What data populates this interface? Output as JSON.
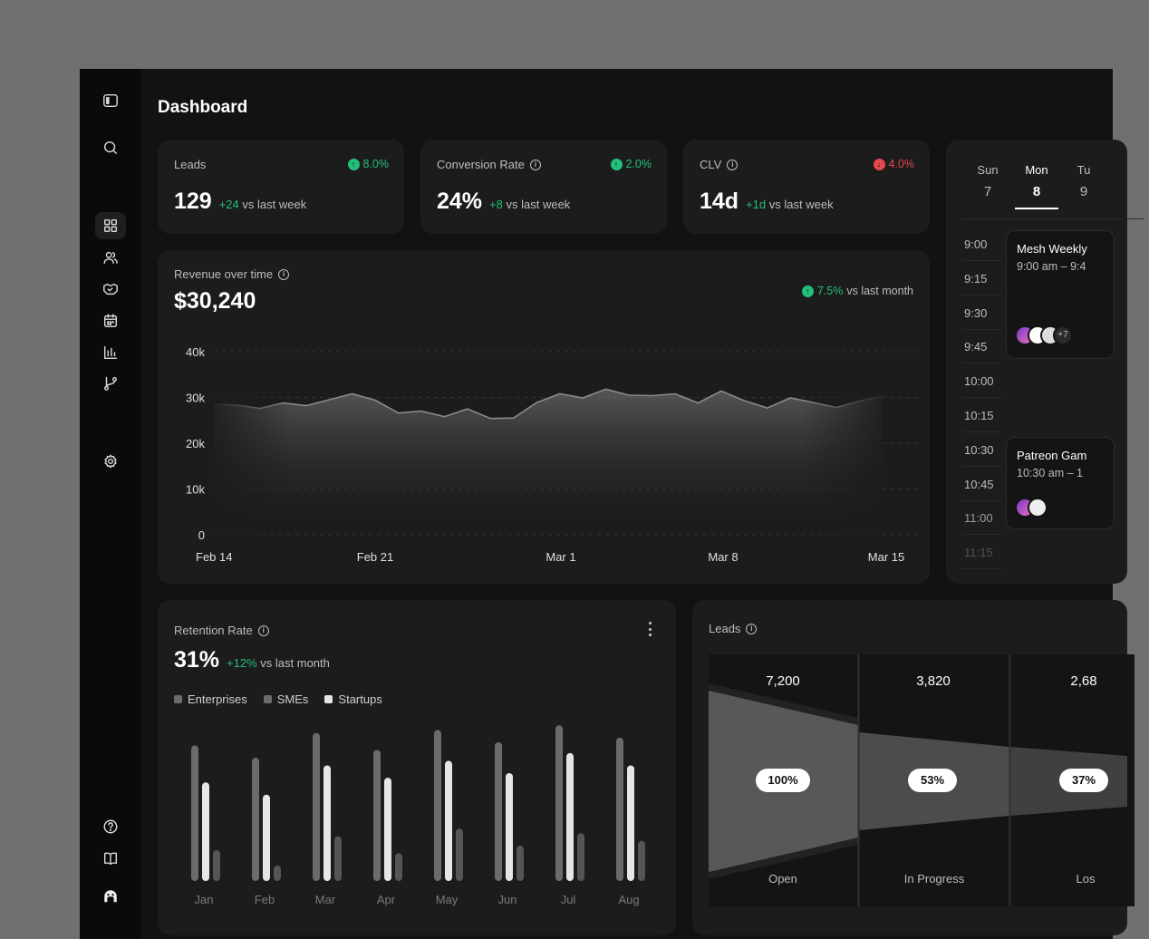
{
  "title": "Dashboard",
  "sidebar": {
    "icons": [
      "sidebar-toggle-icon",
      "search-icon",
      "grid-icon",
      "users-icon",
      "handshake-icon",
      "calendar-icon",
      "bar-chart-icon",
      "git-branch-icon",
      "settings-icon",
      "help-icon",
      "book-icon",
      "logo-icon"
    ],
    "active": "grid-icon"
  },
  "kpis": [
    {
      "label": "Leads",
      "delta": "8.0%",
      "value": "129",
      "change": "+24",
      "suffix": "vs last week",
      "trend": "up"
    },
    {
      "label": "Conversion Rate",
      "delta": "2.0%",
      "value": "24%",
      "change": "+8",
      "suffix": "vs last week",
      "trend": "up"
    },
    {
      "label": "CLV",
      "delta": "4.0%",
      "value": "14d",
      "change": "+1d",
      "suffix": "vs last week",
      "trend": "down"
    }
  ],
  "revenue": {
    "label": "Revenue over time",
    "value": "$30,240",
    "delta": "7.5%",
    "delta_suffix": "vs last month"
  },
  "calendar": {
    "days": [
      {
        "name": "Sun",
        "date": "7"
      },
      {
        "name": "Mon",
        "date": "8"
      },
      {
        "name": "Tu",
        "date": "9"
      }
    ],
    "times": [
      "9:00",
      "9:15",
      "9:30",
      "9:45",
      "10:00",
      "10:15",
      "10:30",
      "10:45",
      "11:00",
      "11:15"
    ],
    "events": [
      {
        "title": "Mesh Weekly",
        "time": "9:00 am – 9:4",
        "extra": "+7"
      },
      {
        "title": "Patreon Gam",
        "time": "10:30 am – 1"
      }
    ]
  },
  "retention": {
    "label": "Retention Rate",
    "value": "31%",
    "change": "+12%",
    "suffix": "vs last month"
  },
  "funnel": {
    "label": "Leads",
    "stages": [
      {
        "count": "7,200",
        "pct": "100%",
        "name": "Open"
      },
      {
        "count": "3,820",
        "pct": "53%",
        "name": "In Progress"
      },
      {
        "count": "2,68",
        "pct": "37%",
        "name": "Los"
      }
    ]
  },
  "chart_data": [
    {
      "type": "area",
      "title": "Revenue over time",
      "xlabel": "",
      "ylabel": "",
      "ylim": [
        0,
        40000
      ],
      "yticks": [
        "40k",
        "30k",
        "20k",
        "10k",
        "0"
      ],
      "xticks": [
        "Feb 14",
        "Feb 21",
        "Mar 1",
        "Mar 8",
        "Mar 15"
      ],
      "x": [
        "Feb 14",
        "Feb 15",
        "Feb 16",
        "Feb 17",
        "Feb 18",
        "Feb 19",
        "Feb 20",
        "Feb 21",
        "Feb 22",
        "Feb 23",
        "Feb 24",
        "Feb 25",
        "Feb 26",
        "Feb 27",
        "Feb 28",
        "Mar 1",
        "Mar 2",
        "Mar 3",
        "Mar 4",
        "Mar 5",
        "Mar 6",
        "Mar 7",
        "Mar 8",
        "Mar 9",
        "Mar 10",
        "Mar 11",
        "Mar 12",
        "Mar 13",
        "Mar 14",
        "Mar 15"
      ],
      "values": [
        28500,
        28300,
        27600,
        28800,
        28200,
        29500,
        30800,
        29400,
        26600,
        27000,
        25800,
        27500,
        25400,
        25500,
        28900,
        30800,
        29900,
        31800,
        30500,
        30400,
        30800,
        28800,
        31400,
        29300,
        27700,
        29900,
        28900,
        27800,
        29200,
        30300
      ],
      "grid": true
    },
    {
      "type": "bar",
      "title": "Retention Rate",
      "xlabel": "",
      "ylabel": "",
      "categories": [
        "Jan",
        "Feb",
        "Mar",
        "Apr",
        "May",
        "Jun",
        "Jul",
        "Aug"
      ],
      "series": [
        {
          "name": "Enterprises",
          "values": [
            88,
            80,
            96,
            85,
            98,
            90,
            101,
            93
          ]
        },
        {
          "name": "Startups",
          "values": [
            64,
            56,
            75,
            67,
            78,
            70,
            83,
            75
          ]
        },
        {
          "name": "SMEs",
          "values": [
            20,
            10,
            29,
            18,
            34,
            23,
            31,
            26
          ]
        }
      ],
      "legend": [
        "Enterprises",
        "SMEs",
        "Startups"
      ],
      "colors": {
        "Enterprises": "#6b6b6b",
        "SMEs": "#555555",
        "Startups": "#e6e6e6"
      }
    }
  ]
}
